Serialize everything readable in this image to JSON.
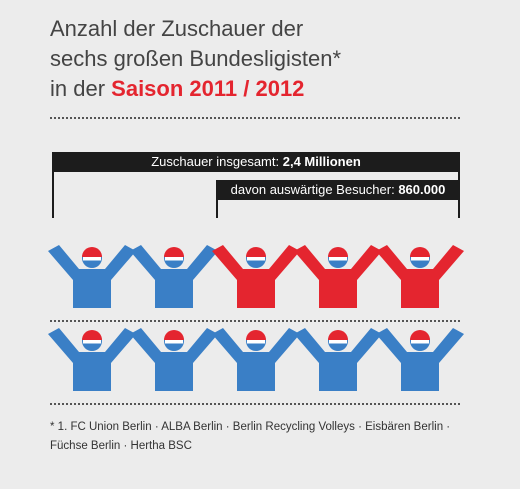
{
  "title": {
    "line1": "Anzahl der Zuschauer der",
    "line2": "sechs großen Bundesligisten*",
    "line3_prefix": "in der ",
    "line3_highlight": "Saison 2011 / 2012"
  },
  "chart_data": {
    "type": "pictogram",
    "total": {
      "label": "Zuschauer insgesamt:",
      "value": "2,4 Millionen"
    },
    "away": {
      "label": "davon auswärtige Besucher:",
      "value": "860.000"
    },
    "rows": [
      [
        "blue",
        "blue",
        "red",
        "red",
        "red"
      ],
      [
        "blue",
        "blue",
        "blue",
        "blue",
        "blue"
      ]
    ]
  },
  "colors": {
    "home": "#3a7fc6",
    "away": "#e4252f",
    "head_top": "#e4252f",
    "head_face": "#ffffff",
    "head_bottom": "#3a7fc6"
  },
  "footnote": {
    "line1": "* 1. FC Union Berlin · ALBA Berlin · Berlin Recycling Volleys · Eisbären Berlin ·",
    "line2": "Füchse Berlin · Hertha BSC"
  }
}
